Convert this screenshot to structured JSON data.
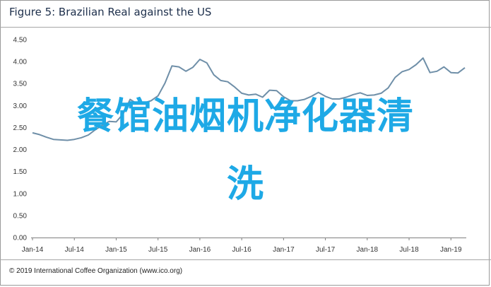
{
  "header": {
    "title": "Figure 5: Brazilian Real against the US"
  },
  "footer": {
    "copyright": "© 2019 International Coffee Organization (www.ico.org)"
  },
  "overlay": {
    "line1": "餐馆油烟机净化器清",
    "line2": "洗"
  },
  "colors": {
    "series": "#6f8fa8",
    "overlay": "#1ea9e6",
    "title": "#1d2f4b"
  },
  "chart_data": {
    "type": "line",
    "title": "Figure 5: Brazilian Real against the US",
    "ylim": [
      0,
      4.5
    ],
    "yticks": [
      "0.00",
      "0.50",
      "1.00",
      "1.50",
      "2.00",
      "2.50",
      "3.00",
      "3.50",
      "4.00",
      "4.50"
    ],
    "xticks": [
      "Jan-14",
      "Jul-14",
      "Jan-15",
      "Jul-15",
      "Jan-16",
      "Jul-16",
      "Jan-17",
      "Jul-17",
      "Jan-18",
      "Jul-18",
      "Jan-19"
    ],
    "grid": false,
    "legend": "none",
    "series": [
      {
        "x": [
          "Jan-14",
          "Feb-14",
          "Mar-14",
          "Apr-14",
          "May-14",
          "Jun-14",
          "Jul-14",
          "Aug-14",
          "Sep-14",
          "Oct-14",
          "Nov-14",
          "Dec-14",
          "Jan-15",
          "Feb-15",
          "Mar-15",
          "Apr-15",
          "May-15",
          "Jun-15",
          "Jul-15",
          "Aug-15",
          "Sep-15",
          "Oct-15",
          "Nov-15",
          "Dec-15",
          "Jan-16",
          "Feb-16",
          "Mar-16",
          "Apr-16",
          "May-16",
          "Jun-16",
          "Jul-16",
          "Aug-16",
          "Sep-16",
          "Oct-16",
          "Nov-16",
          "Dec-16",
          "Jan-17",
          "Feb-17",
          "Mar-17",
          "Apr-17",
          "May-17",
          "Jun-17",
          "Jul-17",
          "Aug-17",
          "Sep-17",
          "Oct-17",
          "Nov-17",
          "Dec-17",
          "Jan-18",
          "Feb-18",
          "Mar-18",
          "Apr-18",
          "May-18",
          "Jun-18",
          "Jul-18",
          "Aug-18",
          "Sep-18",
          "Oct-18",
          "Nov-18",
          "Dec-18",
          "Jan-19",
          "Feb-19",
          "Mar-19"
        ],
        "values": [
          2.38,
          2.34,
          2.28,
          2.23,
          2.22,
          2.21,
          2.23,
          2.27,
          2.33,
          2.45,
          2.55,
          2.64,
          2.63,
          2.81,
          3.14,
          3.04,
          3.06,
          3.11,
          3.22,
          3.51,
          3.9,
          3.88,
          3.78,
          3.87,
          4.05,
          3.97,
          3.7,
          3.57,
          3.54,
          3.42,
          3.28,
          3.24,
          3.26,
          3.19,
          3.35,
          3.34,
          3.2,
          3.11,
          3.11,
          3.14,
          3.21,
          3.3,
          3.21,
          3.15,
          3.15,
          3.19,
          3.25,
          3.29,
          3.23,
          3.24,
          3.28,
          3.4,
          3.64,
          3.77,
          3.82,
          3.93,
          4.08,
          3.75,
          3.78,
          3.88,
          3.75,
          3.74,
          3.86
        ]
      }
    ]
  }
}
